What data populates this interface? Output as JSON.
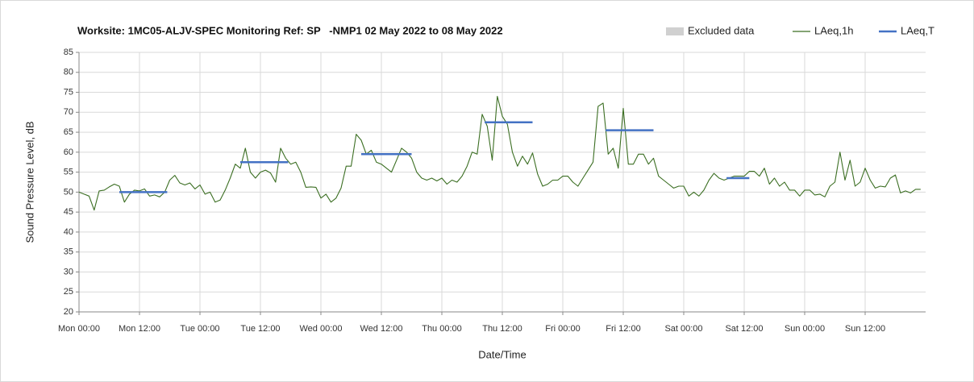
{
  "chart_data": {
    "type": "line",
    "title": "Worksite: 1MC05-ALJV-SPEC Monitoring Ref: SP   -NMP1 02 May 2022 to 08 May 2022",
    "xlabel": "Date/Time",
    "ylabel": "Sound Pressure Level, dB",
    "xlim": [
      0,
      168
    ],
    "ylim": [
      20,
      85
    ],
    "xticks": [
      {
        "value": 0,
        "label": "Mon 00:00"
      },
      {
        "value": 12,
        "label": "Mon 12:00"
      },
      {
        "value": 24,
        "label": "Tue 00:00"
      },
      {
        "value": 36,
        "label": "Tue 12:00"
      },
      {
        "value": 48,
        "label": "Wed 00:00"
      },
      {
        "value": 60,
        "label": "Wed 12:00"
      },
      {
        "value": 72,
        "label": "Thu 00:00"
      },
      {
        "value": 84,
        "label": "Thu 12:00"
      },
      {
        "value": 96,
        "label": "Fri 00:00"
      },
      {
        "value": 108,
        "label": "Fri 12:00"
      },
      {
        "value": 120,
        "label": "Sat 00:00"
      },
      {
        "value": 132,
        "label": "Sat 12:00"
      },
      {
        "value": 144,
        "label": "Sun 00:00"
      },
      {
        "value": 156,
        "label": "Sun 12:00"
      }
    ],
    "yticks": [
      20,
      25,
      30,
      35,
      40,
      45,
      50,
      55,
      60,
      65,
      70,
      75,
      80,
      85
    ],
    "grid": true,
    "legend": "top-right",
    "series": [
      {
        "name": "Excluded data",
        "color": "#d0d0d0",
        "kind": "area",
        "x": [],
        "values": []
      },
      {
        "name": "LAeq,1h",
        "color": "#3b6e22",
        "kind": "line",
        "x": [
          0,
          1,
          2,
          3,
          4,
          5,
          6,
          7,
          8,
          9,
          10,
          11,
          12,
          13,
          14,
          15,
          16,
          17,
          18,
          19,
          20,
          21,
          22,
          23,
          24,
          25,
          26,
          27,
          28,
          29,
          30,
          31,
          32,
          33,
          34,
          35,
          36,
          37,
          38,
          39,
          40,
          41,
          42,
          43,
          44,
          45,
          46,
          47,
          48,
          49,
          50,
          51,
          52,
          53,
          54,
          55,
          56,
          57,
          58,
          59,
          60,
          61,
          62,
          63,
          64,
          65,
          66,
          67,
          68,
          69,
          70,
          71,
          72,
          73,
          74,
          75,
          76,
          77,
          78,
          79,
          80,
          81,
          82,
          83,
          84,
          85,
          86,
          87,
          88,
          89,
          90,
          91,
          92,
          93,
          94,
          95,
          96,
          97,
          98,
          99,
          100,
          101,
          102,
          103,
          104,
          105,
          106,
          107,
          108,
          109,
          110,
          111,
          112,
          113,
          114,
          115,
          116,
          117,
          118,
          119,
          120,
          121,
          122,
          123,
          124,
          125,
          126,
          127,
          128,
          129,
          130,
          131,
          132,
          133,
          134,
          135,
          136,
          137,
          138,
          139,
          140,
          141,
          142,
          143,
          144,
          145,
          146,
          147,
          148,
          149,
          150,
          151,
          152,
          153,
          154,
          155,
          156,
          157,
          158,
          159,
          160,
          161,
          162,
          163,
          164,
          165,
          166,
          167
        ],
        "values": [
          50,
          49.5,
          49,
          45.5,
          50.3,
          50.5,
          51.3,
          52,
          51.5,
          47.5,
          49.5,
          50.5,
          50.3,
          50.8,
          49,
          49.3,
          48.8,
          50,
          53,
          54.2,
          52.3,
          51.8,
          52.3,
          50.8,
          51.8,
          49.5,
          50,
          47.5,
          48,
          50.5,
          53.5,
          57,
          56,
          61,
          55,
          53.5,
          55,
          55.5,
          54.8,
          52.5,
          61,
          58.5,
          57,
          57.5,
          55,
          51.2,
          51.3,
          51.2,
          48.5,
          49.5,
          47.5,
          48.5,
          51,
          56.5,
          56.5,
          64.5,
          63,
          59.5,
          60.5,
          57.5,
          57,
          56,
          55,
          58,
          61,
          60,
          58.5,
          55,
          53.5,
          53,
          53.5,
          52.8,
          53.5,
          52,
          53,
          52.5,
          54,
          56.5,
          60,
          59.5,
          69.5,
          66.5,
          58,
          74,
          69,
          67,
          60,
          56.5,
          59,
          57,
          59.8,
          54.5,
          51.5,
          52,
          53,
          53,
          54,
          54,
          52.5,
          51.5,
          53.5,
          55.5,
          57.5,
          71.5,
          72.3,
          59.5,
          61,
          56,
          71,
          57,
          57,
          59.5,
          59.5,
          57,
          58.5,
          54,
          53,
          52,
          51,
          51.5,
          51.5,
          49,
          50,
          49,
          50.5,
          53,
          54.7,
          53.5,
          53,
          53.5,
          54,
          54,
          54,
          55.2,
          55.2,
          54,
          56,
          52,
          53.5,
          51.5,
          52.5,
          50.5,
          50.5,
          49,
          50.5,
          50.5,
          49.3,
          49.5,
          48.8,
          51.5,
          52.5,
          60,
          53,
          58,
          51.5,
          52.5,
          56,
          53,
          51,
          51.5,
          51.3,
          53.5,
          54.3,
          49.8,
          50.3,
          49.8,
          50.7,
          50.7
        ]
      },
      {
        "name": "LAeq,T",
        "color": "#4472c4",
        "kind": "line",
        "x": [
          8,
          17.5,
          17.5,
          32,
          41.5,
          41.5,
          56,
          66,
          66,
          80.5,
          90,
          90,
          104.5,
          114,
          114,
          128.5,
          133
        ],
        "values": [
          50,
          50,
          null,
          57.5,
          57.5,
          null,
          59.5,
          59.5,
          null,
          67.5,
          67.5,
          null,
          65.5,
          65.5,
          null,
          53.5,
          53.5
        ]
      }
    ]
  }
}
